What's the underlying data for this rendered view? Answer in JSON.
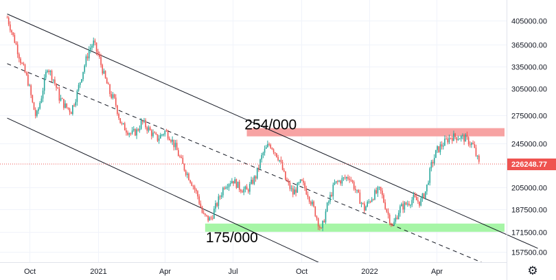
{
  "chart_data": {
    "type": "candlestick",
    "x_ticks": [
      "Oct",
      "2021",
      "Apr",
      "Jul",
      "Oct",
      "2022",
      "Apr"
    ],
    "y_ticks": [
      405000,
      365000,
      335000,
      305000,
      275000,
      245000,
      205000,
      187500,
      171500,
      157500
    ],
    "y_tick_labels": [
      "405000.00",
      "365000.00",
      "335000.00",
      "305000.00",
      "275000.00",
      "245000.00",
      "205000.00",
      "187500.00",
      "171500.00",
      "157500.00"
    ],
    "last_price": 226248.77,
    "last_price_label": "226248.77",
    "annotations": [
      {
        "text": "254/000",
        "level": 254000,
        "color": "#f7a3a3"
      },
      {
        "text": "175/000",
        "level": 175000,
        "color": "#a6f5a6"
      }
    ],
    "price_path": [
      [
        "2020-09-01",
        410000
      ],
      [
        "2020-09-10",
        375000
      ],
      [
        "2020-09-20",
        340000
      ],
      [
        "2020-09-28",
        318000
      ],
      [
        "2020-10-05",
        288000
      ],
      [
        "2020-10-10",
        272000
      ],
      [
        "2020-10-18",
        300000
      ],
      [
        "2020-10-25",
        335000
      ],
      [
        "2020-11-02",
        318000
      ],
      [
        "2020-11-10",
        295000
      ],
      [
        "2020-11-18",
        285000
      ],
      [
        "2020-11-26",
        280000
      ],
      [
        "2020-12-04",
        300000
      ],
      [
        "2020-12-12",
        330000
      ],
      [
        "2020-12-20",
        358000
      ],
      [
        "2020-12-26",
        368000
      ],
      [
        "2021-01-03",
        345000
      ],
      [
        "2021-01-10",
        320000
      ],
      [
        "2021-01-17",
        300000
      ],
      [
        "2021-01-24",
        290000
      ],
      [
        "2021-02-01",
        265000
      ],
      [
        "2021-02-08",
        260000
      ],
      [
        "2021-02-15",
        255000
      ],
      [
        "2021-02-22",
        258000
      ],
      [
        "2021-03-01",
        268000
      ],
      [
        "2021-03-08",
        262000
      ],
      [
        "2021-03-15",
        255000
      ],
      [
        "2021-03-22",
        250000
      ],
      [
        "2021-04-01",
        258000
      ],
      [
        "2021-04-08",
        252000
      ],
      [
        "2021-04-16",
        240000
      ],
      [
        "2021-04-25",
        225000
      ],
      [
        "2021-05-05",
        212000
      ],
      [
        "2021-05-15",
        198000
      ],
      [
        "2021-05-22",
        183000
      ],
      [
        "2021-06-01",
        180000
      ],
      [
        "2021-06-10",
        192000
      ],
      [
        "2021-06-20",
        207000
      ],
      [
        "2021-07-01",
        212000
      ],
      [
        "2021-07-10",
        205000
      ],
      [
        "2021-07-20",
        202000
      ],
      [
        "2021-08-01",
        215000
      ],
      [
        "2021-08-10",
        235000
      ],
      [
        "2021-08-20",
        245000
      ],
      [
        "2021-09-01",
        232000
      ],
      [
        "2021-09-10",
        212000
      ],
      [
        "2021-09-20",
        200000
      ],
      [
        "2021-10-01",
        210000
      ],
      [
        "2021-10-10",
        200000
      ],
      [
        "2021-10-20",
        185000
      ],
      [
        "2021-10-28",
        172000
      ],
      [
        "2021-11-05",
        190000
      ],
      [
        "2021-11-15",
        208000
      ],
      [
        "2021-11-25",
        212000
      ],
      [
        "2021-12-05",
        215000
      ],
      [
        "2021-12-15",
        200000
      ],
      [
        "2021-12-25",
        188000
      ],
      [
        "2022-01-05",
        198000
      ],
      [
        "2022-01-15",
        203000
      ],
      [
        "2022-01-25",
        185000
      ],
      [
        "2022-02-01",
        175000
      ],
      [
        "2022-02-10",
        188000
      ],
      [
        "2022-02-20",
        192000
      ],
      [
        "2022-03-01",
        196000
      ],
      [
        "2022-03-10",
        193000
      ],
      [
        "2022-03-18",
        203000
      ],
      [
        "2022-03-25",
        225000
      ],
      [
        "2022-04-01",
        238000
      ],
      [
        "2022-04-10",
        245000
      ],
      [
        "2022-04-20",
        252000
      ],
      [
        "2022-05-01",
        252000
      ],
      [
        "2022-05-10",
        250000
      ],
      [
        "2022-05-20",
        243000
      ],
      [
        "2022-05-28",
        226248.77
      ]
    ],
    "trend_lines": [
      {
        "style": "solid",
        "from": [
          "2020-09-01",
          416000
        ],
        "to": [
          "2022-08-15",
          160000
        ]
      },
      {
        "style": "dashed",
        "from": [
          "2020-09-01",
          339000
        ],
        "to": [
          "2022-06-01",
          150000
        ]
      },
      {
        "style": "solid",
        "from": [
          "2020-09-01",
          272000
        ],
        "to": [
          "2021-10-25",
          150000
        ]
      }
    ],
    "grid": true,
    "colors": {
      "up": "#26a69a",
      "down": "#ef5350",
      "last_price_badge": "#ef5350"
    }
  },
  "settings_icon": "gear-icon"
}
